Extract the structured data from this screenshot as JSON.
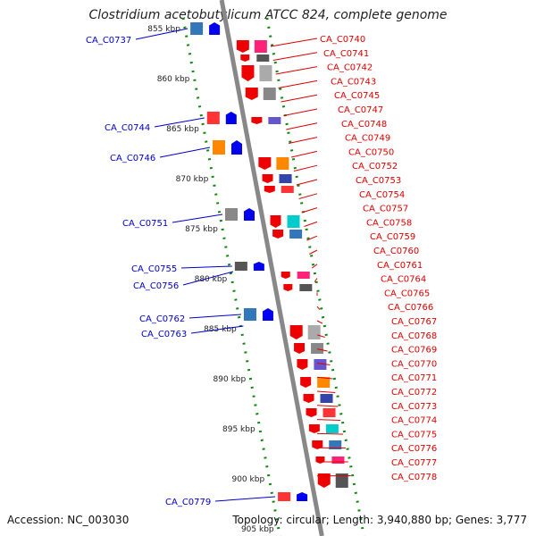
{
  "title": "Clostridium acetobutylicum ATCC 824, complete genome",
  "footer": {
    "accession": "Accession: NC_003030",
    "summary": "Topology: circular; Length: 3,940,880 bp; Genes: 3,777"
  },
  "ruler_labels": [
    "855 kbp",
    "860 kbp",
    "865 kbp",
    "870 kbp",
    "875 kbp",
    "880 kbp",
    "885 kbp",
    "890 kbp",
    "895 kbp",
    "900 kbp",
    "905 kbp"
  ],
  "left_labels": [
    "CA_C0737",
    "CA_C0744",
    "CA_C0746",
    "CA_C0751",
    "CA_C0755",
    "CA_C0756",
    "CA_C0762",
    "CA_C0763",
    "CA_C0779"
  ],
  "right_labels": [
    "CA_C0740",
    "CA_C0741",
    "CA_C0742",
    "CA_C0743",
    "CA_C0745",
    "CA_C0747",
    "CA_C0748",
    "CA_C0749",
    "CA_C0750",
    "CA_C0752",
    "CA_C0753",
    "CA_C0754",
    "CA_C0757",
    "CA_C0758",
    "CA_C0759",
    "CA_C0760",
    "CA_C0761",
    "CA_C0764",
    "CA_C0765",
    "CA_C0766",
    "CA_C0767",
    "CA_C0768",
    "CA_C0769",
    "CA_C0770",
    "CA_C0771",
    "CA_C0772",
    "CA_C0773",
    "CA_C0774",
    "CA_C0775",
    "CA_C0776",
    "CA_C0777",
    "CA_C0778"
  ],
  "colors": {
    "forward_gene": "#ee0000",
    "reverse_gene": "#0000ee",
    "right_label": "#dd0000",
    "left_label": "#0000cc",
    "backbone": "#888888",
    "ruler": "#118811"
  }
}
